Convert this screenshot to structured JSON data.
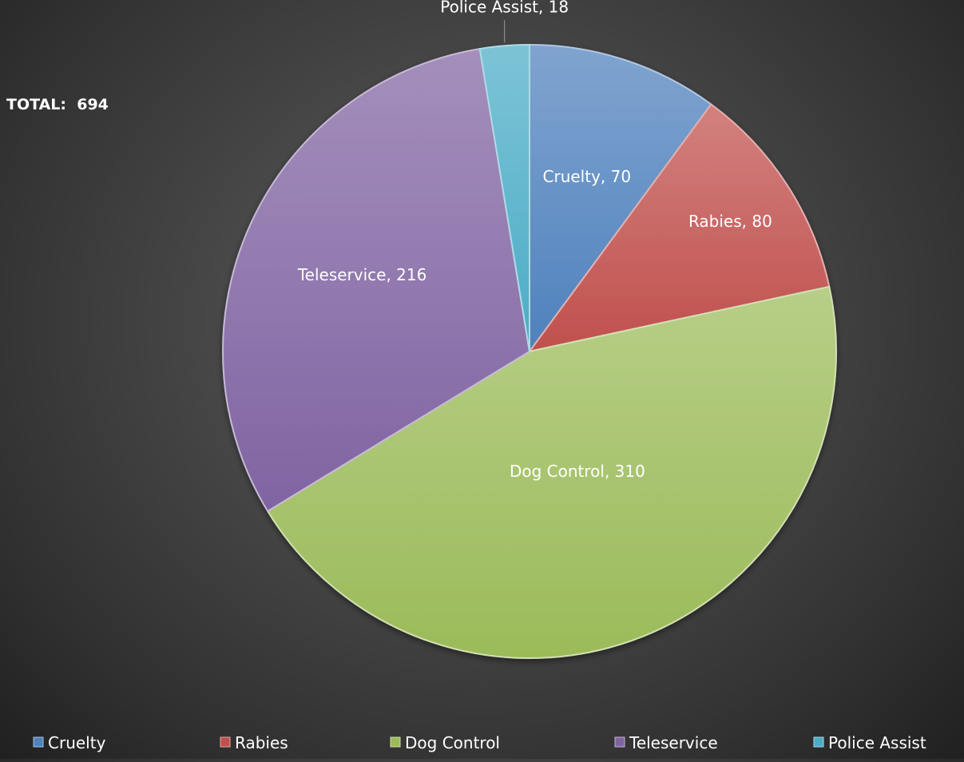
{
  "total_label": "TOTAL:  694",
  "chart_data": {
    "type": "pie",
    "categories": [
      "Cruelty",
      "Rabies",
      "Dog Control",
      "Teleservice",
      "Police Assist"
    ],
    "values": [
      70,
      80,
      310,
      216,
      18
    ],
    "data_labels": [
      "Cruelty, 70",
      "Rabies, 80",
      "Dog Control, 310",
      "Teleservice, 216",
      "Police Assist, 18"
    ],
    "colors": [
      "#4f81bd",
      "#c0504d",
      "#9bbb59",
      "#8064a2",
      "#4bacc6"
    ],
    "legend_position": "bottom",
    "start_angle_deg": 0,
    "direction": "clockwise"
  }
}
